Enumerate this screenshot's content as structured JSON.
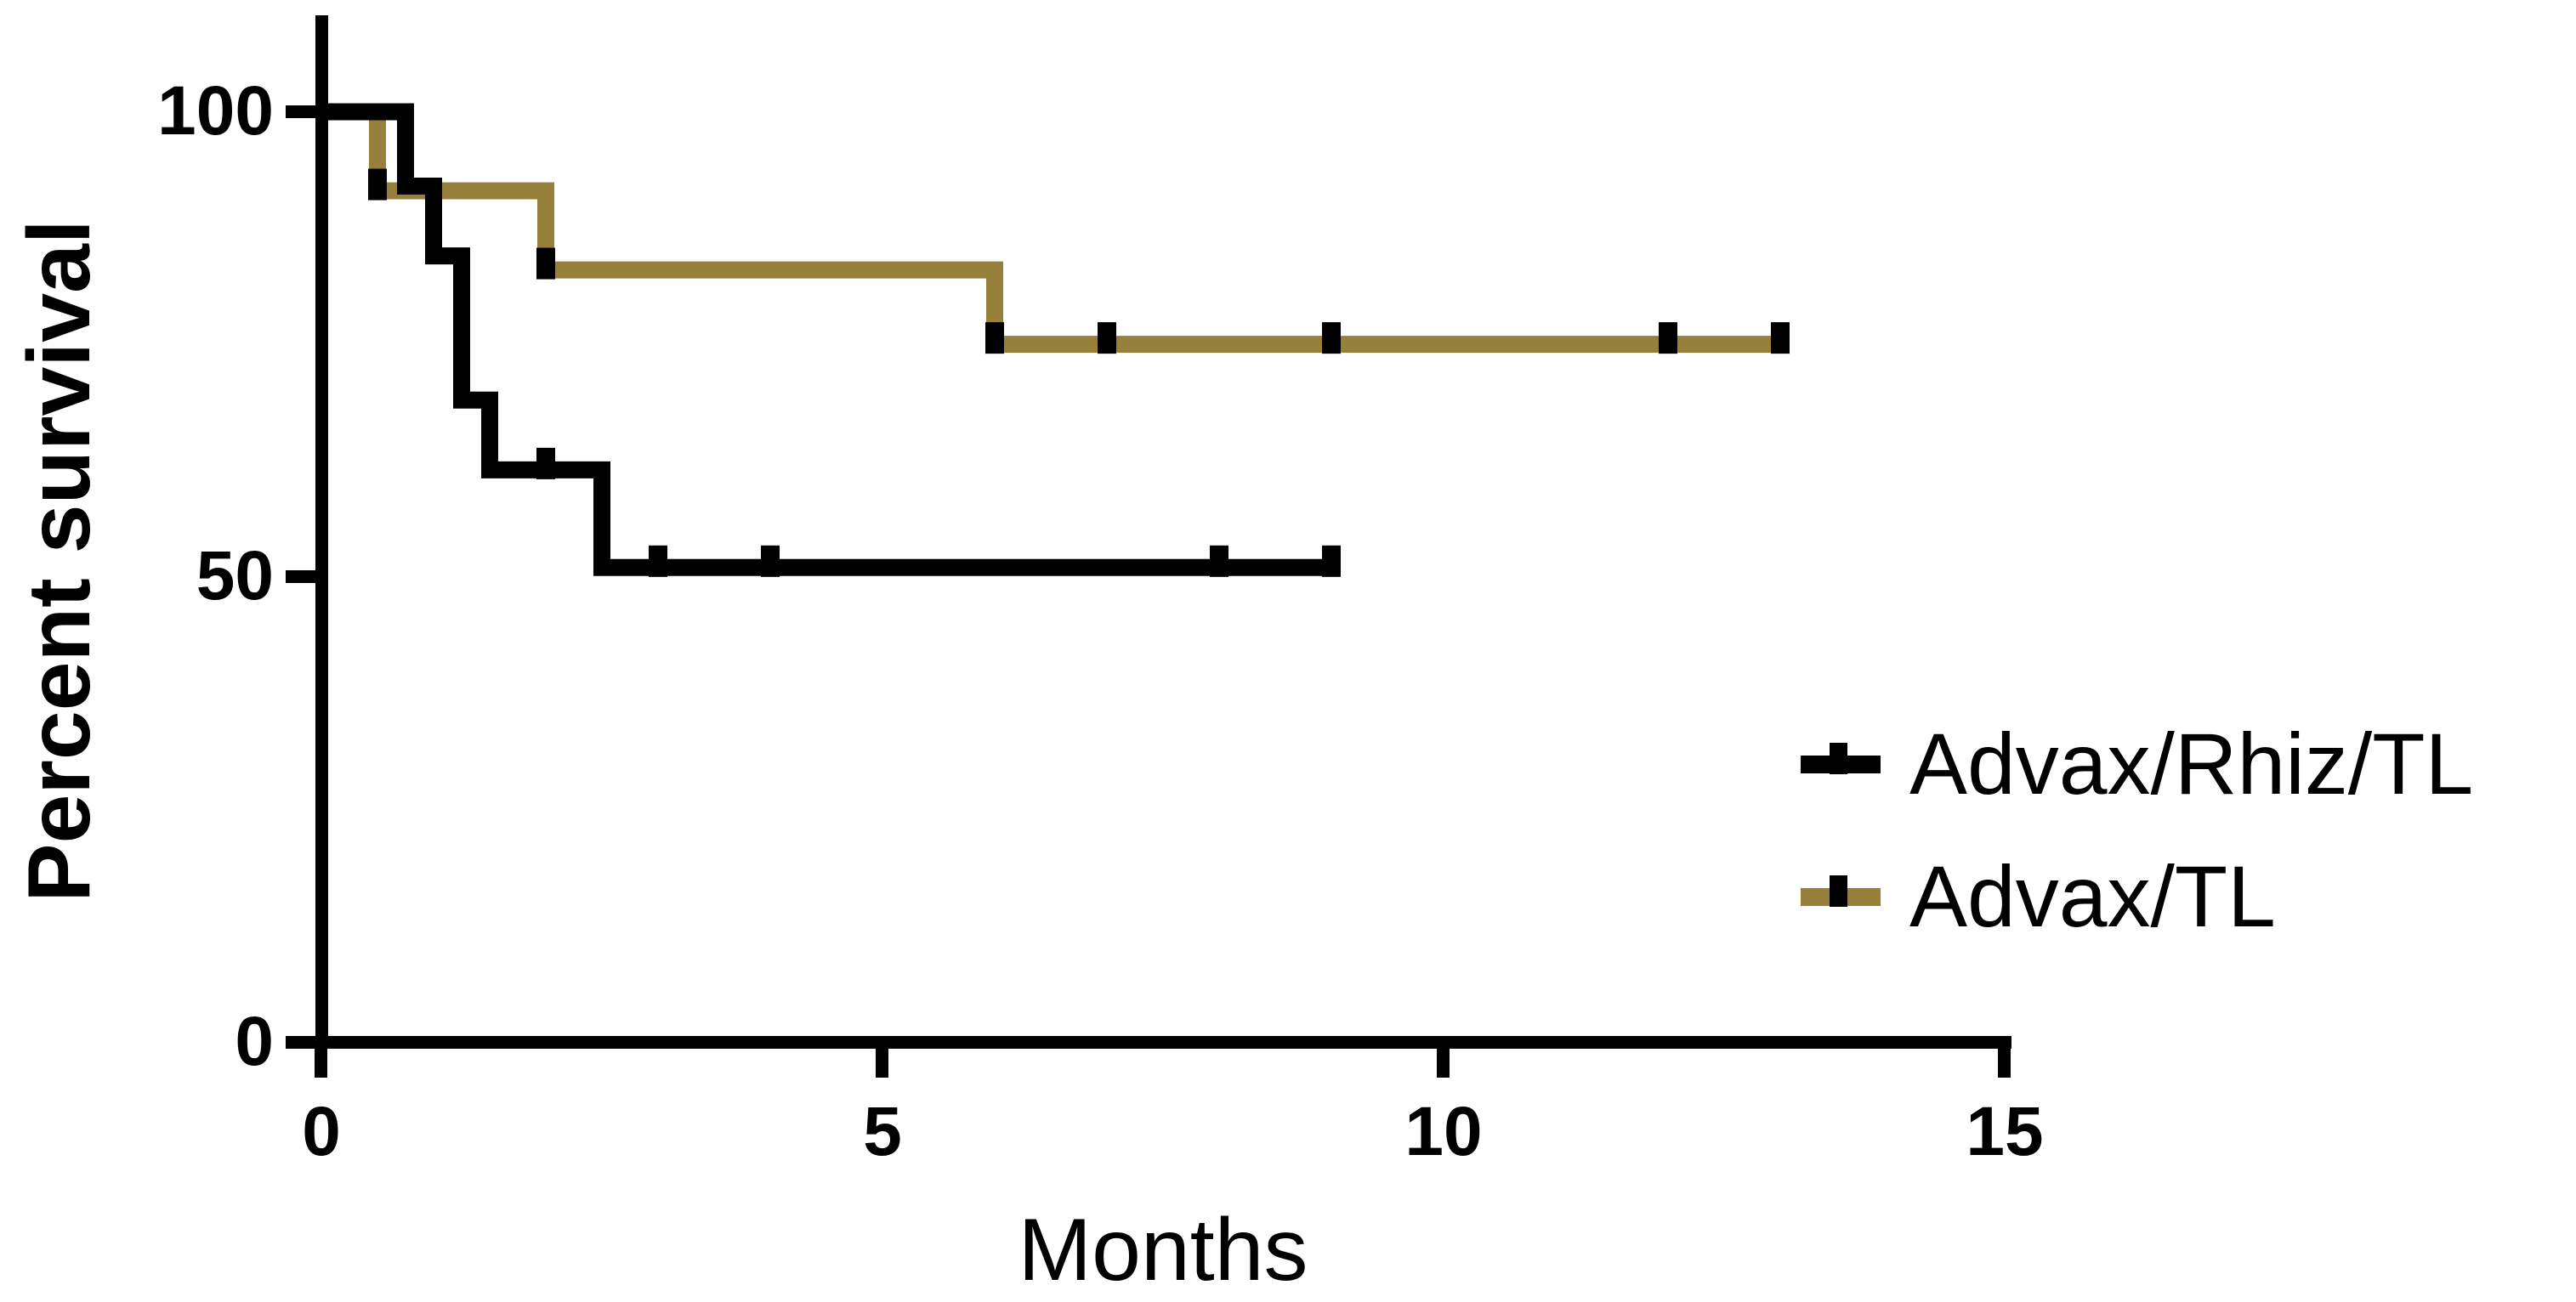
{
  "chart_data": {
    "type": "line",
    "subtype": "kaplan-meier-survival-step",
    "title": "",
    "xlabel": "Months",
    "ylabel": "Percent survival",
    "xlim": [
      0,
      15
    ],
    "ylim": [
      0,
      100
    ],
    "xticks": [
      "0",
      "5",
      "10",
      "15"
    ],
    "xtick_values": [
      0,
      5,
      10,
      15
    ],
    "yticks": [
      "100",
      "50",
      "0"
    ],
    "ytick_values": [
      100,
      50,
      0
    ],
    "grid": false,
    "legend_position": "right-middle",
    "censor_marker": "black-tick-on-line",
    "series": [
      {
        "name": "Advax/Rhiz/TL",
        "color": "#000000",
        "start_percent": 100,
        "steps": [
          {
            "month": 0.75,
            "percent_after": 92
          },
          {
            "month": 1.0,
            "percent_after": 84.5
          },
          {
            "month": 1.25,
            "percent_after": 69
          },
          {
            "month": 1.5,
            "percent_after": 61.5
          },
          {
            "month": 2.5,
            "percent_after": 51
          }
        ],
        "end_month": 9,
        "censored": [
          {
            "month": 2,
            "percent": 61.5
          },
          {
            "month": 3,
            "percent": 51
          },
          {
            "month": 4,
            "percent": 51
          },
          {
            "month": 8,
            "percent": 51
          },
          {
            "month": 9,
            "percent": 51
          }
        ]
      },
      {
        "name": "Advax/TL",
        "color": "#97803B",
        "start_percent": 100,
        "steps": [
          {
            "month": 0.5,
            "percent_after": 91.5
          },
          {
            "month": 2.0,
            "percent_after": 83
          },
          {
            "month": 6.0,
            "percent_after": 75
          }
        ],
        "end_month": 13,
        "censored": [
          {
            "month": 0.5,
            "percent": 91.5
          },
          {
            "month": 2.0,
            "percent": 83
          },
          {
            "month": 6.0,
            "percent": 75
          },
          {
            "month": 7.0,
            "percent": 75
          },
          {
            "month": 9.0,
            "percent": 75
          },
          {
            "month": 12.0,
            "percent": 75
          },
          {
            "month": 13.0,
            "percent": 75
          }
        ]
      }
    ]
  }
}
